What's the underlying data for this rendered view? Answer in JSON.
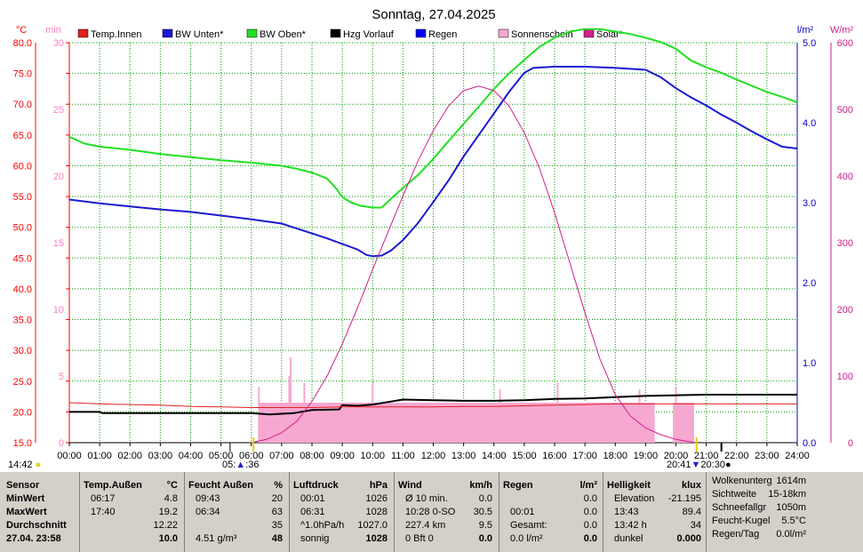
{
  "chart_data": {
    "type": "line",
    "title": "Sonntag, 27.04.2025",
    "colors": {
      "temp_innen": "#e02020",
      "bw_unten": "#1a1ad0",
      "bw_oben": "#20e020",
      "hzg_vorlauf": "#000000",
      "regen": "#0000ff",
      "sonnenschein": "#f7a8d0",
      "solar": "#d0208a",
      "axis_red": "#ff0000",
      "axis_pink": "#ff80c0",
      "axis_blue": "#0000c0",
      "axis_magenta": "#d02090",
      "grid": "#00a000"
    },
    "legend": [
      {
        "name": "Temp.Innen",
        "color": "#e02020"
      },
      {
        "name": "BW Unten*",
        "color": "#1a1ad0"
      },
      {
        "name": "BW Oben*",
        "color": "#20e020"
      },
      {
        "name": "Hzg Vorlauf",
        "color": "#000000"
      },
      {
        "name": "Regen",
        "color": "#0000ff"
      },
      {
        "name": "Sonnenschein",
        "color": "#f7a8d0"
      },
      {
        "name": "Solar*",
        "color": "#d0208a"
      }
    ],
    "axes": {
      "x_ticks": [
        "00:00",
        "01:00",
        "02:00",
        "03:00",
        "04:00",
        "05:00",
        "06:00",
        "07:00",
        "08:00",
        "09:00",
        "10:00",
        "11:00",
        "12:00",
        "13:00",
        "14:00",
        "15:00",
        "16:00",
        "17:00",
        "18:00",
        "19:00",
        "20:00",
        "21:00",
        "22:00",
        "23:00",
        "24:00"
      ],
      "left_unit": "°C",
      "left_ticks": [
        "80.0",
        "75.0",
        "70.0",
        "65.0",
        "60.0",
        "55.0",
        "50.0",
        "45.0",
        "40.0",
        "35.0",
        "30.0",
        "25.0",
        "20.0",
        "15.0"
      ],
      "left_ylim": [
        15,
        80
      ],
      "min_unit": "min",
      "min_ticks": [
        "30",
        "25",
        "20",
        "15",
        "10",
        "5",
        "0"
      ],
      "min_ylim": [
        0,
        30
      ],
      "rain_unit": "l/m²",
      "rain_ticks": [
        "5.0",
        "4.0",
        "3.0",
        "2.0",
        "1.0",
        "0.0"
      ],
      "rain_ylim": [
        0,
        5
      ],
      "solar_unit": "W/m²",
      "solar_ticks": [
        "600",
        "500",
        "400",
        "300",
        "200",
        "100",
        "0"
      ],
      "solar_ylim": [
        0,
        600
      ],
      "grid": true
    },
    "series": [
      {
        "name": "BW Oben*",
        "x": [
          0,
          0.5,
          1,
          2,
          3,
          4,
          5,
          6,
          7,
          7.5,
          8,
          8.5,
          8.8,
          9,
          9.3,
          9.6,
          10,
          10.3,
          10.6,
          11,
          11.5,
          12,
          12.5,
          13,
          13.5,
          14,
          14.5,
          15,
          15.5,
          16,
          16.5,
          17,
          17.5,
          18,
          18.5,
          19,
          19.5,
          20,
          20.5,
          21,
          21.5,
          22,
          22.5,
          23,
          23.5,
          24
        ],
        "y": [
          64.7,
          63.6,
          63.1,
          62.6,
          61.9,
          61.4,
          60.9,
          60.5,
          60.0,
          59.5,
          58.9,
          57.9,
          56.3,
          54.9,
          54.0,
          53.5,
          53.2,
          53.2,
          54.6,
          56.4,
          58.5,
          61.1,
          64.0,
          66.8,
          69.6,
          72.5,
          75.0,
          77.2,
          79.3,
          80.8,
          81.8,
          82.2,
          82.2,
          81.8,
          81.4,
          80.8,
          80.1,
          79.0,
          77.1,
          76.0,
          75.1,
          74.0,
          73.0,
          72.0,
          71.2,
          70.3
        ]
      },
      {
        "name": "BW Unten*",
        "x": [
          0,
          1,
          2,
          3,
          4,
          5,
          6,
          7,
          7.5,
          8,
          8.5,
          9,
          9.5,
          9.8,
          10,
          10.3,
          10.6,
          11,
          11.5,
          12,
          12.5,
          13,
          13.5,
          14,
          14.5,
          15,
          15.3,
          16,
          17,
          18,
          19,
          19.5,
          20,
          20.5,
          21,
          21.5,
          22,
          22.5,
          23,
          23.5,
          24
        ],
        "y": [
          54.5,
          53.9,
          53.4,
          52.9,
          52.5,
          51.9,
          51.3,
          50.6,
          49.8,
          49.0,
          48.2,
          47.3,
          46.4,
          45.5,
          45.3,
          45.4,
          46.2,
          47.9,
          50.7,
          54.1,
          57.6,
          61.5,
          65.0,
          68.5,
          72.0,
          75.1,
          75.9,
          76.1,
          76.1,
          75.9,
          75.6,
          74.4,
          72.6,
          71.1,
          69.8,
          68.3,
          67.0,
          65.6,
          64.3,
          63.1,
          62.8
        ]
      },
      {
        "name": "Hzg Vorlauf",
        "x": [
          0,
          1,
          1.1,
          2,
          3,
          4,
          5,
          6,
          6.6,
          7.4,
          8,
          8.9,
          9,
          9.5,
          10,
          10.5,
          11,
          12,
          13,
          14,
          15,
          16,
          17,
          18,
          19,
          20,
          21,
          22,
          23,
          24
        ],
        "y": [
          20.0,
          20.0,
          19.8,
          19.8,
          19.8,
          19.8,
          19.8,
          19.8,
          19.6,
          19.8,
          20.3,
          20.4,
          21.1,
          21.0,
          21.2,
          21.6,
          22.0,
          21.9,
          21.8,
          21.8,
          21.9,
          22.1,
          22.2,
          22.4,
          22.6,
          22.7,
          22.8,
          22.8,
          22.8,
          22.8
        ]
      },
      {
        "name": "Temp.Innen",
        "x": [
          0,
          1,
          2,
          3,
          4,
          5,
          6,
          7,
          8,
          9,
          10,
          11,
          12,
          13,
          14,
          15,
          16,
          17,
          18,
          19,
          20,
          21,
          22,
          23,
          24
        ],
        "y": [
          21.5,
          21.3,
          21.2,
          21.1,
          20.9,
          20.8,
          20.7,
          20.7,
          20.7,
          20.8,
          20.8,
          20.8,
          20.8,
          20.9,
          20.9,
          21.0,
          21.1,
          21.2,
          21.3,
          21.3,
          21.3,
          21.3,
          21.3,
          21.3,
          21.3
        ]
      },
      {
        "name": "Solar*",
        "x": [
          6,
          6.5,
          7,
          7.5,
          8,
          8.5,
          9,
          9.5,
          10,
          10.5,
          11,
          11.5,
          12,
          12.5,
          13,
          13.5,
          14,
          14.5,
          15,
          15.5,
          16,
          16.5,
          17,
          17.5,
          18,
          18.5,
          19,
          19.5,
          20,
          20.5,
          20.7
        ],
        "y": [
          0,
          5,
          15,
          32,
          62,
          100,
          148,
          202,
          260,
          315,
          370,
          423,
          468,
          505,
          528,
          535,
          528,
          505,
          465,
          412,
          345,
          270,
          195,
          125,
          72,
          40,
          22,
          12,
          5,
          1,
          0
        ]
      },
      {
        "name": "Sonnenschein",
        "x": [
          6.25,
          6.75,
          7,
          7.25,
          7.5,
          8,
          9,
          10,
          10.5,
          11,
          12,
          13,
          14,
          14.5,
          15,
          16,
          17,
          18,
          19,
          19.3
        ],
        "y": [
          5.7,
          5.7,
          5.7,
          5.7,
          5.7,
          5.7,
          5.7,
          5.7,
          5.7,
          5.7,
          5.7,
          5.7,
          5.7,
          5.7,
          5.7,
          5.7,
          5.7,
          5.7,
          5.7,
          5.7
        ]
      }
    ],
    "sonnenschein_blocks": [
      [
        6.25,
        19.3,
        3.0
      ],
      [
        19.9,
        20.6,
        3.0
      ]
    ],
    "sonnenschein_spikes": [
      [
        6.25,
        4.2
      ],
      [
        7.25,
        5.0
      ],
      [
        7.3,
        6.4
      ],
      [
        7.75,
        4.5
      ],
      [
        10.0,
        4.5
      ],
      [
        14.2,
        4.0
      ],
      [
        16.1,
        4.5
      ],
      [
        18.8,
        4.0
      ],
      [
        20.0,
        4.2
      ]
    ],
    "markers": {
      "sunrise": "05:",
      "sunrise_suffix": ":36",
      "sunset": "20:41",
      "sunset_suffix": "20:30",
      "day_time": "14:42"
    }
  },
  "stats": {
    "col0": {
      "header": "Sensor",
      "rows": [
        "MinWert",
        "MaxWert",
        "Durchschnitt",
        "27.04. 23:58"
      ]
    },
    "col1": {
      "header": "Temp.Außen",
      "unit": "°C",
      "rows": [
        [
          "06:17",
          "4.8"
        ],
        [
          "17:40",
          "19.2"
        ],
        [
          "",
          "12.22"
        ],
        [
          "",
          "10.0"
        ]
      ]
    },
    "col2": {
      "header": "Feucht Außen",
      "unit": "%",
      "rows": [
        [
          "09:43",
          "20"
        ],
        [
          "06:34",
          "63"
        ],
        [
          "",
          "35"
        ],
        [
          "4.51 g/m³",
          "48"
        ]
      ]
    },
    "col3": {
      "header": "Luftdruck",
      "unit": "hPa",
      "rows": [
        [
          "00:01",
          "1026"
        ],
        [
          "06:31",
          "1028"
        ],
        [
          "^1.0hPa/h",
          "1027.0"
        ],
        [
          "sonnig",
          "1028"
        ]
      ]
    },
    "col4": {
      "header": "Wind",
      "unit": "km/h",
      "rows": [
        [
          "Ø 10 min.",
          "0.0"
        ],
        [
          "10:28   0-SO",
          "30.5"
        ],
        [
          "227.4 km",
          "9.5"
        ],
        [
          "0 Bft   0",
          "0.0"
        ]
      ]
    },
    "col5": {
      "header": "Regen",
      "unit": "l/m²",
      "rows": [
        [
          "",
          "0.0"
        ],
        [
          "00:01",
          "0.0"
        ],
        [
          "Gesamt:",
          "0.0"
        ],
        [
          "0.0 l/m²",
          "0.0"
        ]
      ]
    },
    "col6": {
      "header": "Helligkeit",
      "unit": "klux",
      "rows": [
        [
          "Elevation",
          "-21.195"
        ],
        [
          "13:43",
          "89.4"
        ],
        [
          "13:42 h",
          "34"
        ],
        [
          "dunkel",
          "0.000"
        ]
      ]
    },
    "col7": {
      "rows": [
        [
          "Wolkenunterg",
          "1614m"
        ],
        [
          "Sichtweite",
          "15-18km"
        ],
        [
          "Schneefallgr",
          "1050m"
        ],
        [
          "Feucht-Kugel",
          "5.5°C"
        ],
        [
          "Regen/Tag",
          "0.0l/m²"
        ]
      ]
    }
  }
}
